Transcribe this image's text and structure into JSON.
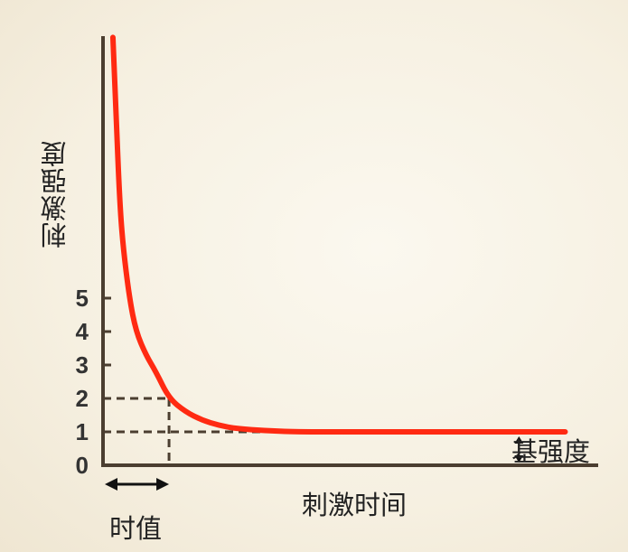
{
  "chart_data": {
    "type": "line",
    "title": "",
    "xlabel": "刺激时间",
    "ylabel": "刺激强度",
    "yticks": [
      "0",
      "1",
      "2",
      "3",
      "4",
      "5"
    ],
    "ylim": [
      0,
      13
    ],
    "xlim": [
      0,
      15
    ],
    "grid": false,
    "series": [
      {
        "color": "#ff2a12",
        "x": [
          0.3,
          0.4,
          0.5,
          0.6,
          0.8,
          1.0,
          1.3,
          1.6,
          2.0,
          2.5,
          3.0,
          3.5,
          4.0,
          5.0,
          6.0,
          8.0,
          10.0,
          12.0,
          14.0
        ],
        "y": [
          12.8,
          10.4,
          8.0,
          6.6,
          5.0,
          4.0,
          3.3,
          2.8,
          2.0,
          1.6,
          1.35,
          1.2,
          1.1,
          1.03,
          1.0,
          1.0,
          1.0,
          1.0,
          1.0
        ]
      }
    ],
    "annotations": {
      "rheobase_level": 1,
      "rheobase_label": "基强度",
      "chronaxie_level": 2,
      "chronaxie_time": 2.0,
      "chronaxie_label": "时值"
    },
    "colors": {
      "axis": "#4b3e30",
      "curve": "#ff2a12",
      "guide": "#4b3e30"
    }
  }
}
